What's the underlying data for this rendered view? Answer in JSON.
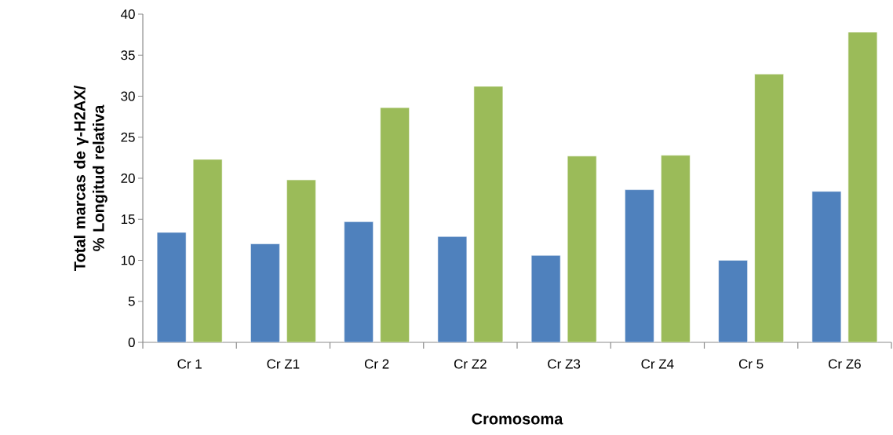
{
  "chart_data": {
    "type": "bar",
    "xlabel": "Cromosoma",
    "ylabel": "Total marcas de γ-H2AX/ % Longitud relativa",
    "categories": [
      "Cr 1",
      "Cr Z1",
      "Cr 2",
      "Cr Z2",
      "Cr Z3",
      "Cr Z4",
      "Cr 5",
      "Cr Z6"
    ],
    "series": [
      {
        "color": "#4f81bd",
        "values": [
          13.4,
          12.0,
          14.7,
          12.9,
          10.6,
          18.6,
          10.0,
          18.4
        ]
      },
      {
        "color": "#9bbb59",
        "values": [
          22.3,
          19.8,
          28.6,
          31.2,
          22.7,
          22.8,
          32.7,
          37.8
        ]
      }
    ],
    "ylim": [
      0,
      40
    ],
    "yticks": [
      0,
      5,
      10,
      15,
      20,
      25,
      30,
      35,
      40
    ],
    "grid": false
  }
}
